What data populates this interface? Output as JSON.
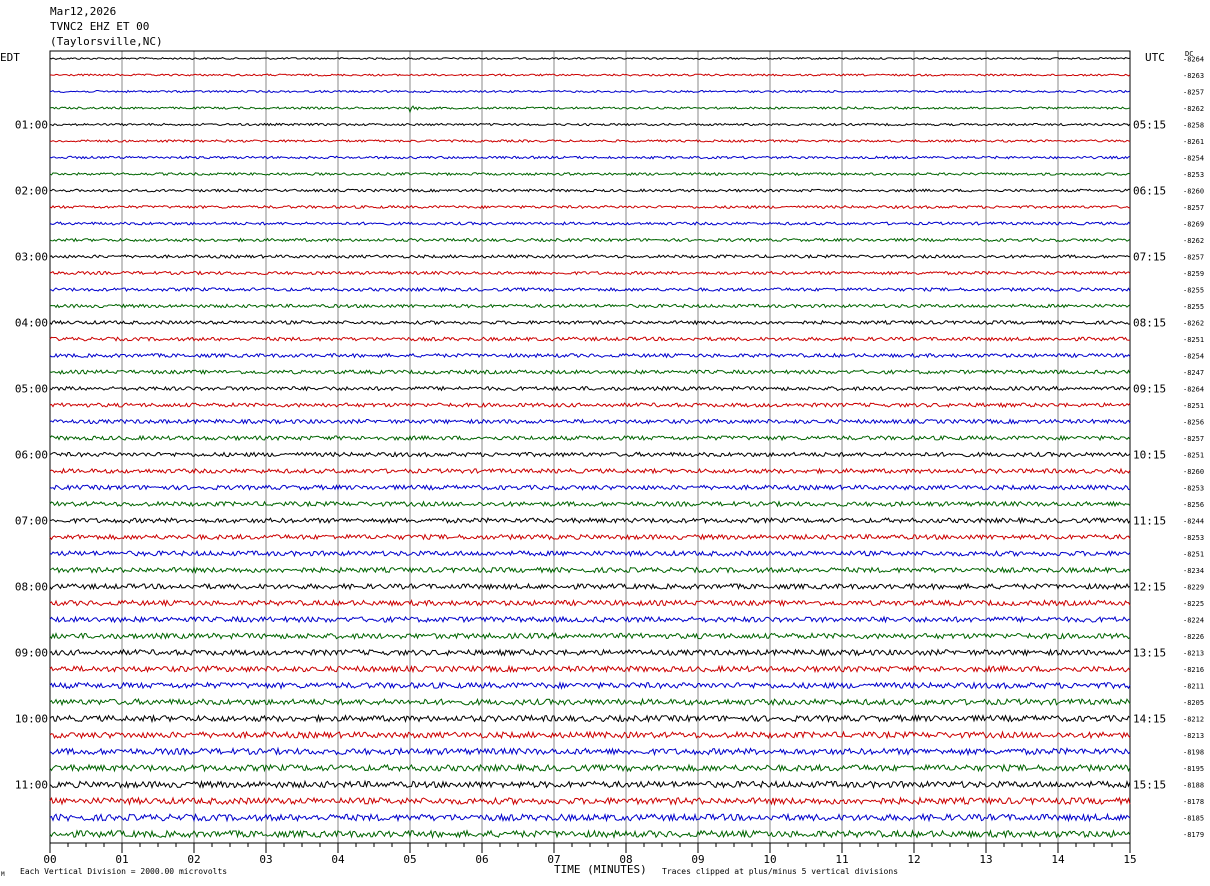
{
  "header": {
    "date": "Mar12,2026",
    "station": "TVNC2 EHZ ET 00",
    "location": "(Taylorsville,NC)"
  },
  "chart_data": {
    "type": "line",
    "title": "",
    "xlabel": "TIME (MINUTES)",
    "x_ticks": [
      "00",
      "01",
      "02",
      "03",
      "04",
      "05",
      "06",
      "07",
      "08",
      "09",
      "10",
      "11",
      "12",
      "13",
      "14",
      "15"
    ],
    "xlim": [
      0,
      15
    ],
    "left_axis_label": "EDT",
    "right_axis_label": "UTC",
    "dc_label": "DC",
    "left_hour_labels": [
      "01:00",
      "02:00",
      "03:00",
      "04:00",
      "05:00",
      "06:00",
      "07:00",
      "08:00",
      "09:00",
      "10:00",
      "11:00"
    ],
    "right_hour_labels": [
      "05:15",
      "06:15",
      "07:15",
      "08:15",
      "09:15",
      "10:15",
      "11:15",
      "12:15",
      "13:15",
      "14:15",
      "15:15"
    ],
    "trace_colors": [
      "#000000",
      "#cc0000",
      "#0000cc",
      "#006400"
    ],
    "dc_offsets": [
      "-8264",
      "-8263",
      "-8257",
      "-8262",
      "-8258",
      "-8261",
      "-8254",
      "-8253",
      "-8260",
      "-8257",
      "-8269",
      "-8262",
      "-8257",
      "-8259",
      "-8255",
      "-8255",
      "-8262",
      "-8251",
      "-8254",
      "-8247",
      "-8264",
      "-8251",
      "-8256",
      "-8257",
      "-8251",
      "-8260",
      "-8253",
      "-8256",
      "-8244",
      "-8253",
      "-8251",
      "-8234",
      "-8229",
      "-8225",
      "-8224",
      "-8226",
      "-8213",
      "-8216",
      "-8211",
      "-8205",
      "-8212",
      "-8213",
      "-8198",
      "-8195",
      "-8188",
      "-8178",
      "-8185",
      "-8179"
    ],
    "events": [
      {
        "trace": 3,
        "minute": 5.0
      }
    ],
    "grid": true
  },
  "footer": {
    "scale_note": "Each Vertical Division = 2000.00 microvolts",
    "clip_note": "Traces clipped at plus/minus 5 vertical divisions",
    "corner_mark": "M"
  }
}
